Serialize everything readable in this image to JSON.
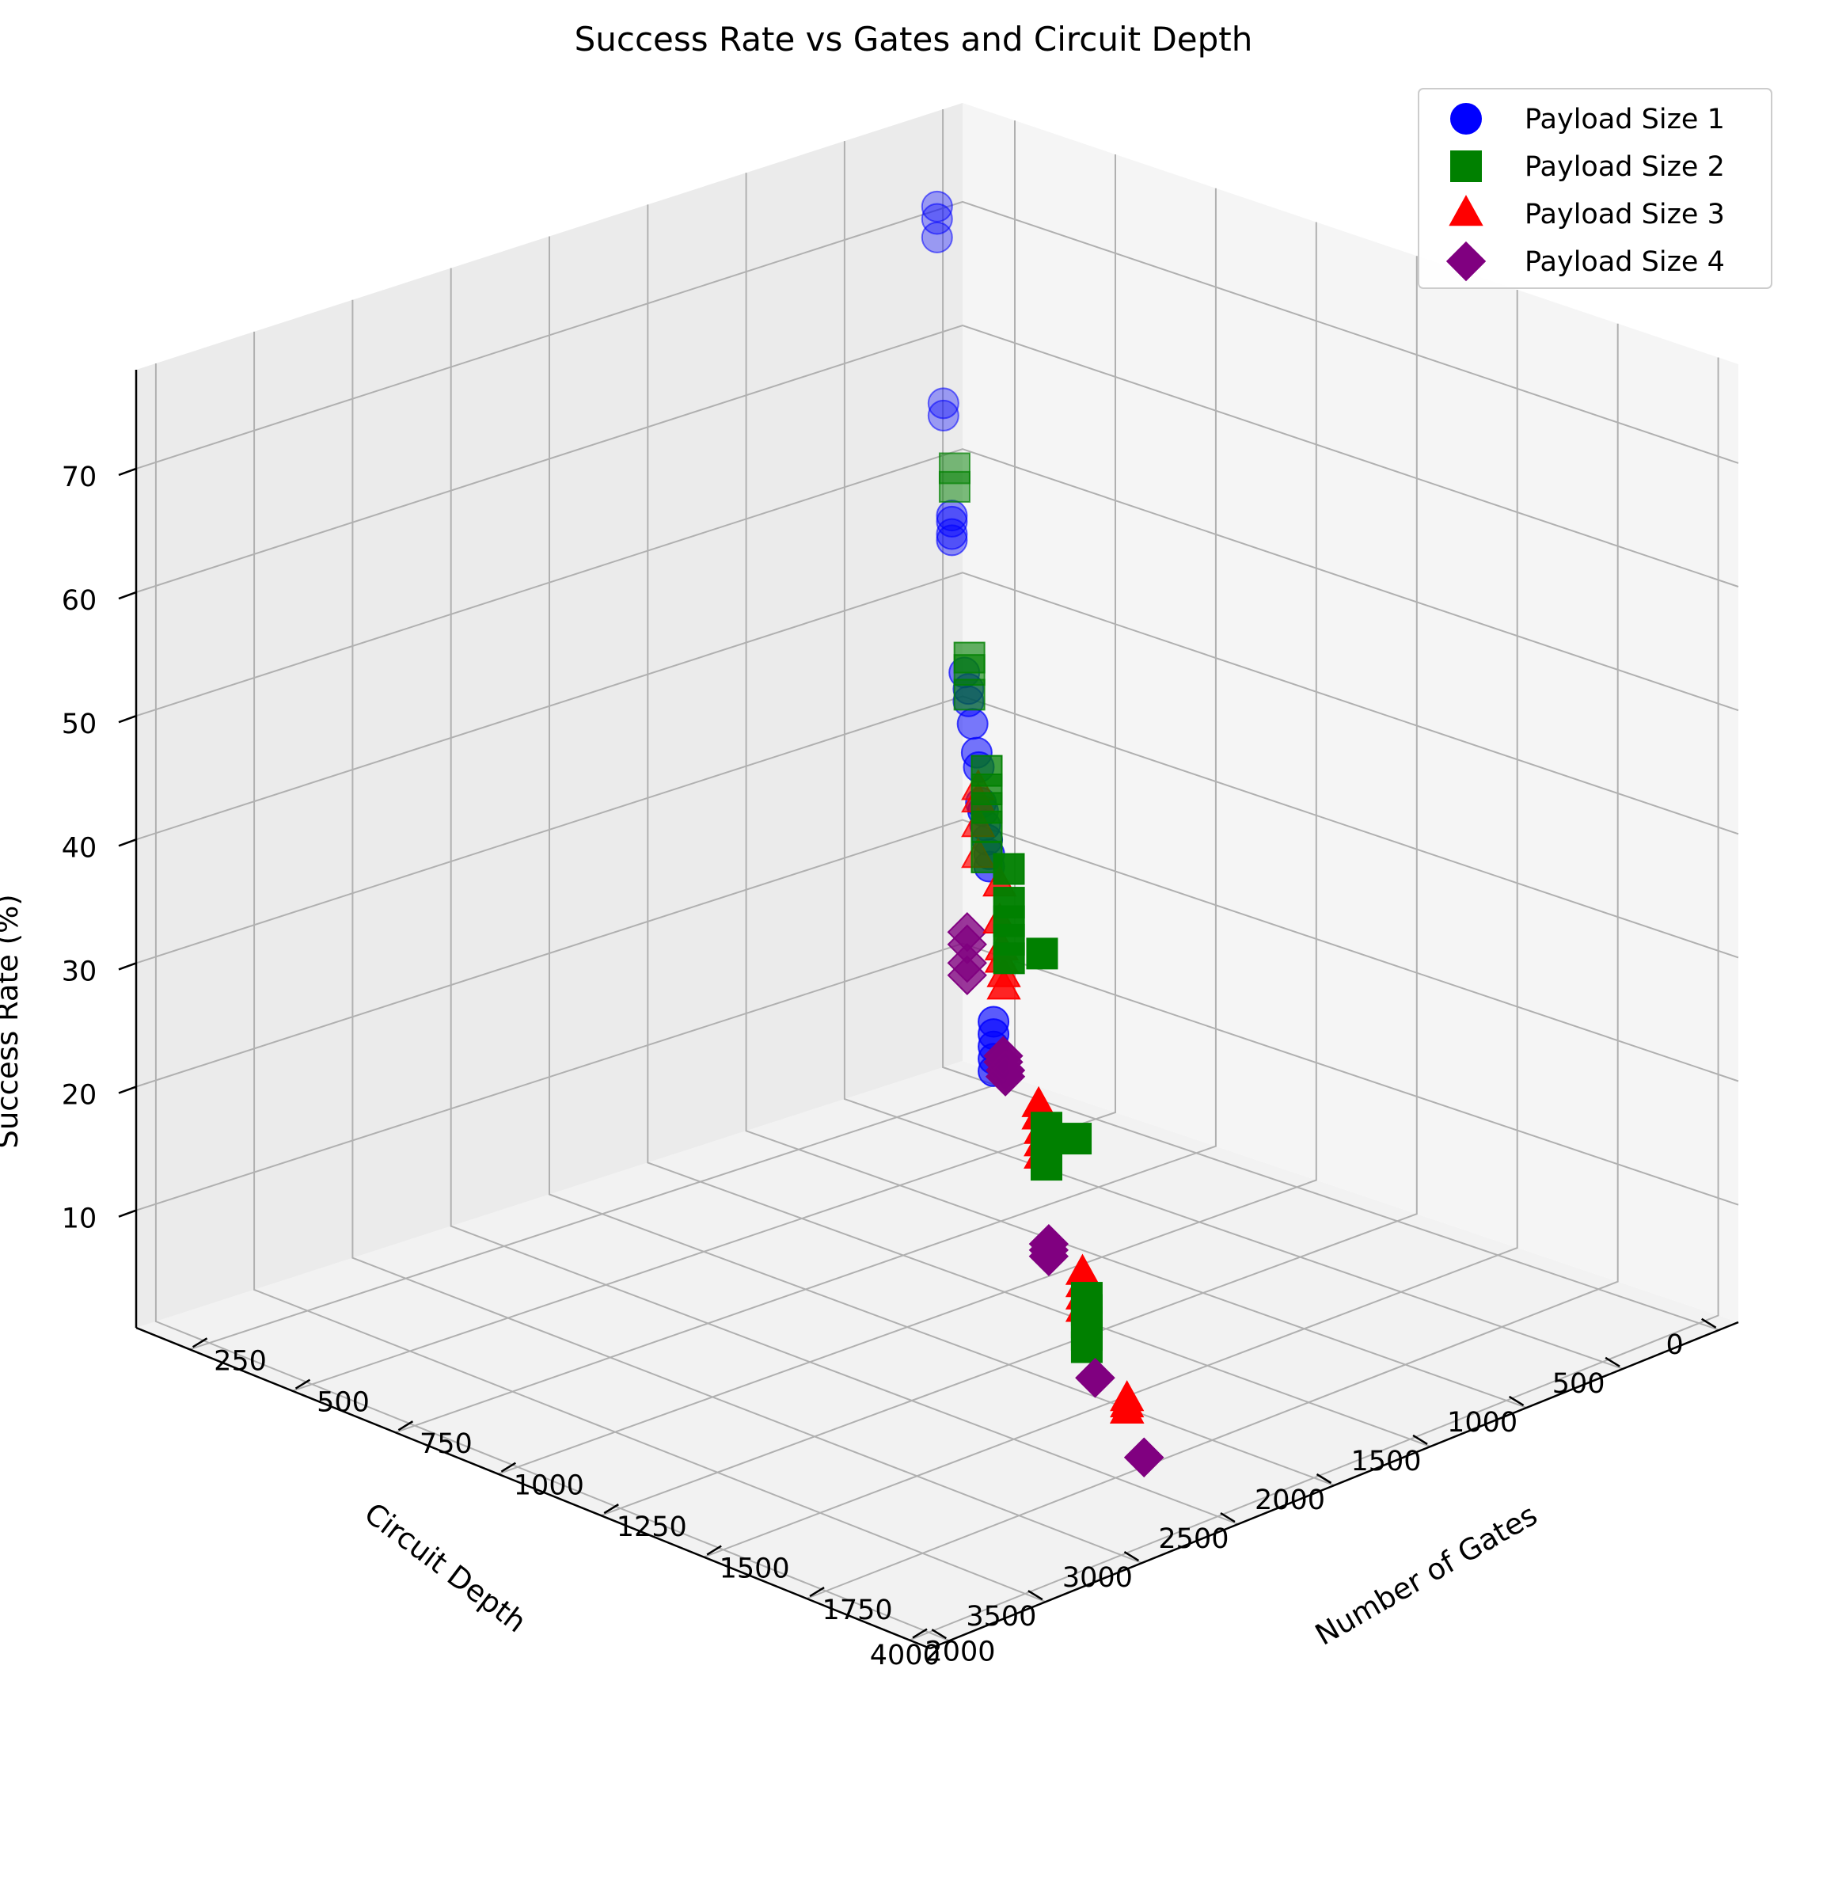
{
  "chart_data": {
    "type": "scatter3d",
    "title": "Success Rate vs Gates and Circuit Depth",
    "xlabel": "Number of Gates",
    "ylabel": "Circuit Depth",
    "zlabel": "Success Rate (%)",
    "xlim": [
      120,
      2050
    ],
    "ylim": [
      -100,
      4100
    ],
    "zlim": [
      0.5,
      78
    ],
    "x_ticks": [
      250,
      500,
      750,
      1000,
      1250,
      1500,
      1750,
      2000
    ],
    "y_ticks": [
      0,
      500,
      1000,
      1500,
      2000,
      2500,
      3000,
      3500,
      4000
    ],
    "z_ticks": [
      10,
      20,
      30,
      40,
      50,
      60,
      70
    ],
    "grid": true,
    "legend_position": "top-right",
    "series": [
      {
        "name": "Payload Size 1",
        "marker": "circle",
        "color": "#0000ff",
        "points": [
          [
            130,
            50,
            70.5
          ],
          [
            130,
            50,
            69.5
          ],
          [
            130,
            50,
            68.0
          ],
          [
            180,
            120,
            55.5
          ],
          [
            180,
            120,
            54.5
          ],
          [
            240,
            200,
            47.5
          ],
          [
            240,
            200,
            47.0
          ],
          [
            240,
            200,
            46.0
          ],
          [
            240,
            200,
            45.5
          ],
          [
            310,
            280,
            36.0
          ],
          [
            330,
            300,
            35.0
          ],
          [
            330,
            300,
            34.0
          ],
          [
            350,
            320,
            32.5
          ],
          [
            370,
            340,
            30.5
          ],
          [
            380,
            350,
            29.5
          ],
          [
            400,
            380,
            27.0
          ],
          [
            410,
            390,
            26.5
          ],
          [
            420,
            400,
            25.5
          ],
          [
            430,
            410,
            24.5
          ],
          [
            440,
            420,
            23.5
          ],
          [
            440,
            420,
            22.5
          ],
          [
            470,
            460,
            10.5
          ],
          [
            470,
            460,
            9.5
          ],
          [
            470,
            460,
            8.5
          ],
          [
            470,
            460,
            7.5
          ],
          [
            470,
            460,
            6.5
          ]
        ]
      },
      {
        "name": "Payload Size 2",
        "marker": "square",
        "color": "#008000",
        "points": [
          [
            320,
            350,
            53.0
          ],
          [
            320,
            350,
            51.5
          ],
          [
            420,
            480,
            39.5
          ],
          [
            420,
            480,
            38.5
          ],
          [
            420,
            480,
            36.5
          ],
          [
            560,
            680,
            33.0
          ],
          [
            560,
            680,
            31.5
          ],
          [
            560,
            680,
            30.0
          ],
          [
            560,
            680,
            28.5
          ],
          [
            560,
            680,
            26.0
          ],
          [
            760,
            980,
            29.0
          ],
          [
            770,
            1000,
            26.5
          ],
          [
            770,
            1000,
            25.0
          ],
          [
            770,
            1000,
            23.5
          ],
          [
            770,
            1000,
            22.0
          ],
          [
            1030,
            1370,
            27.5
          ],
          [
            1060,
            1410,
            14.0
          ],
          [
            1060,
            1410,
            13.0
          ],
          [
            1060,
            1410,
            12.0
          ],
          [
            1060,
            1410,
            11.0
          ],
          [
            1300,
            1760,
            18.0
          ],
          [
            1370,
            1850,
            6.5
          ],
          [
            1370,
            1850,
            5.5
          ],
          [
            1370,
            1850,
            4.5
          ],
          [
            1370,
            1850,
            3.5
          ],
          [
            1370,
            1850,
            2.5
          ]
        ]
      },
      {
        "name": "Payload Size 3",
        "marker": "triangle",
        "color": "#ff0000",
        "points": [
          [
            500,
            600,
            30.5
          ],
          [
            500,
            600,
            29.5
          ],
          [
            500,
            600,
            27.5
          ],
          [
            500,
            600,
            25.0
          ],
          [
            650,
            800,
            25.5
          ],
          [
            650,
            800,
            22.5
          ],
          [
            660,
            810,
            20.5
          ],
          [
            660,
            810,
            19.5
          ],
          [
            670,
            820,
            18.5
          ],
          [
            670,
            820,
            17.5
          ],
          [
            930,
            1180,
            13.0
          ],
          [
            930,
            1180,
            12.0
          ],
          [
            940,
            1190,
            11.0
          ],
          [
            940,
            1190,
            10.0
          ],
          [
            940,
            1190,
            9.0
          ],
          [
            1240,
            1600,
            5.5
          ],
          [
            1240,
            1600,
            4.5
          ],
          [
            1240,
            1600,
            3.5
          ],
          [
            1240,
            1600,
            2.5
          ],
          [
            1550,
            2020,
            1.5
          ],
          [
            1550,
            2020,
            1.0
          ],
          [
            1550,
            2020,
            0.5
          ],
          [
            1550,
            2020,
            0.5
          ],
          [
            1550,
            2020,
            0.5
          ]
        ]
      },
      {
        "name": "Payload Size 4",
        "marker": "diamond",
        "color": "#800080",
        "points": [
          [
            560,
            780,
            20.5
          ],
          [
            560,
            780,
            19.5
          ],
          [
            560,
            780,
            18.0
          ],
          [
            560,
            780,
            17.0
          ],
          [
            780,
            1050,
            14.5
          ],
          [
            780,
            1050,
            14.0
          ],
          [
            790,
            1060,
            13.5
          ],
          [
            790,
            1060,
            13.0
          ],
          [
            1080,
            1440,
            5.0
          ],
          [
            1080,
            1440,
            4.5
          ],
          [
            1080,
            1440,
            4.0
          ],
          [
            1400,
            1870,
            0.5
          ],
          [
            1400,
            1870,
            0.5
          ],
          [
            1400,
            1870,
            0.5
          ],
          [
            1720,
            2290,
            0.5
          ],
          [
            1720,
            2290,
            0.5
          ],
          [
            1720,
            2290,
            0.5
          ]
        ]
      }
    ]
  }
}
